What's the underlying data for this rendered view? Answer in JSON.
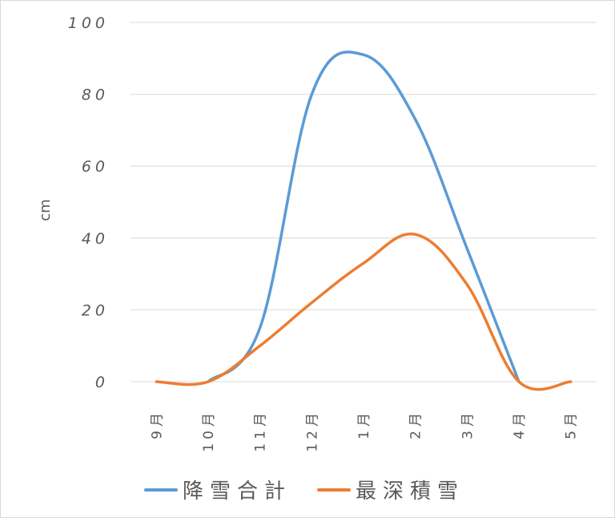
{
  "chart_data": {
    "type": "line",
    "title": "",
    "xlabel": "",
    "ylabel": "cm",
    "ylim": [
      0,
      100
    ],
    "yticks": [
      0,
      20,
      40,
      60,
      80,
      100
    ],
    "grid": true,
    "legend_position": "bottom",
    "categories": [
      "9月",
      "10月",
      "11月",
      "12月",
      "1月",
      "2月",
      "3月",
      "4月",
      "5月"
    ],
    "series": [
      {
        "name": "降雪合計",
        "color": "#5b9bd5",
        "values": [
          null,
          0,
          15,
          80,
          91,
          73,
          37,
          0,
          null
        ]
      },
      {
        "name": "最深積雪",
        "color": "#ed7d31",
        "values": [
          0,
          0,
          10,
          22,
          33,
          41,
          27,
          0,
          0
        ]
      }
    ]
  },
  "legend": {
    "items": [
      {
        "label": "降雪合計",
        "color": "#5b9bd5"
      },
      {
        "label": "最深積雪",
        "color": "#ed7d31"
      }
    ]
  }
}
